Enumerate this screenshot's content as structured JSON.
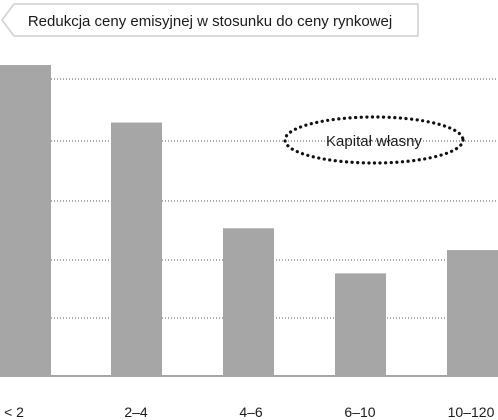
{
  "chart_data": {
    "type": "bar",
    "title": "Redukcja ceny emisyjnej w stosunku do ceny rynkowej",
    "xlabel": "",
    "ylabel": "",
    "categories": [
      "< 2",
      "2–4",
      "4–6",
      "6–10",
      "10–120"
    ],
    "series": [
      {
        "name": "Kapitał własny",
        "values": [
          100,
          81.5,
          47.5,
          33,
          40.5
        ]
      }
    ],
    "ylim": [
      0,
      100
    ],
    "grid": true,
    "legend_position": "top-right"
  },
  "colors": {
    "bar": "#a6a6a6",
    "grid": "#555555",
    "axis": "#a6a6a6",
    "text": "#1a1a1a",
    "title_box_border": "#cfcfcf",
    "legend_border": "#111111"
  }
}
